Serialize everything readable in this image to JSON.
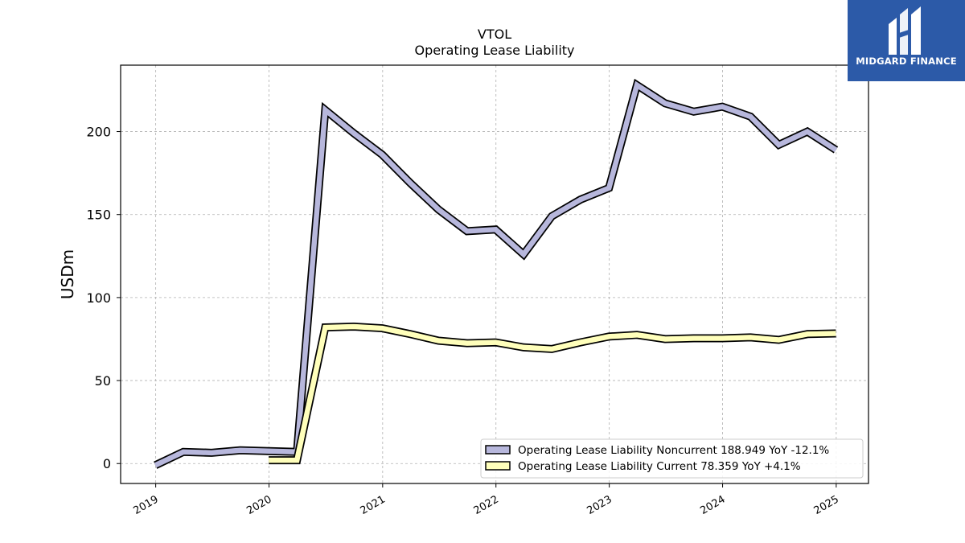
{
  "chart_data": {
    "type": "line",
    "title": "VTOL",
    "subtitle": "Operating Lease Liability",
    "ylabel": "USDm",
    "xlabel": "",
    "ylim": [
      -12,
      240
    ],
    "xlim": [
      "2018-09-10",
      "2025-04-15"
    ],
    "yticks": [
      0,
      50,
      100,
      150,
      200
    ],
    "xticks": [
      "2019",
      "2020",
      "2021",
      "2022",
      "2023",
      "2024",
      "2025"
    ],
    "grid": true,
    "legend_position": "lower-right",
    "series": [
      {
        "name": "Operating Lease Liability Noncurrent",
        "legend_label": "Operating Lease Liability Noncurrent  188.949 YoY -12.1%",
        "color": "#b7b7dc",
        "points": [
          [
            "2018-12-31",
            -1
          ],
          [
            "2019-03-31",
            7
          ],
          [
            "2019-06-30",
            6.5
          ],
          [
            "2019-09-30",
            8
          ],
          [
            "2019-12-31",
            7.5
          ],
          [
            "2020-03-31",
            7
          ],
          [
            "2020-06-30",
            213
          ],
          [
            "2020-09-30",
            199
          ],
          [
            "2020-12-31",
            186
          ],
          [
            "2021-03-31",
            169
          ],
          [
            "2021-06-30",
            153
          ],
          [
            "2021-09-30",
            140
          ],
          [
            "2021-12-31",
            141
          ],
          [
            "2022-03-31",
            126
          ],
          [
            "2022-06-30",
            149
          ],
          [
            "2022-09-30",
            159
          ],
          [
            "2022-12-31",
            166
          ],
          [
            "2023-03-31",
            228
          ],
          [
            "2023-06-30",
            217
          ],
          [
            "2023-09-30",
            212
          ],
          [
            "2023-12-31",
            215
          ],
          [
            "2024-03-31",
            209
          ],
          [
            "2024-06-30",
            192
          ],
          [
            "2024-09-30",
            200
          ],
          [
            "2024-12-31",
            188.949
          ]
        ]
      },
      {
        "name": "Operating Lease Liability Current",
        "legend_label": "Operating Lease Liability Current  78.359 YoY +4.1%",
        "color": "#ffffbb",
        "points": [
          [
            "2019-12-31",
            2
          ],
          [
            "2020-03-31",
            2
          ],
          [
            "2020-06-30",
            82
          ],
          [
            "2020-09-30",
            82.5
          ],
          [
            "2020-12-31",
            81.5
          ],
          [
            "2021-03-31",
            78
          ],
          [
            "2021-06-30",
            74
          ],
          [
            "2021-09-30",
            72.5
          ],
          [
            "2021-12-31",
            73
          ],
          [
            "2022-03-31",
            70
          ],
          [
            "2022-06-30",
            69
          ],
          [
            "2022-09-30",
            73
          ],
          [
            "2022-12-31",
            76.5
          ],
          [
            "2023-03-31",
            77.5
          ],
          [
            "2023-06-30",
            75
          ],
          [
            "2023-09-30",
            75.5
          ],
          [
            "2023-12-31",
            75.5
          ],
          [
            "2024-03-31",
            76
          ],
          [
            "2024-06-30",
            74.5
          ],
          [
            "2024-09-30",
            78
          ],
          [
            "2024-12-31",
            78.359
          ]
        ]
      }
    ]
  },
  "logo": {
    "text": "MIDGARD FINANCE"
  }
}
